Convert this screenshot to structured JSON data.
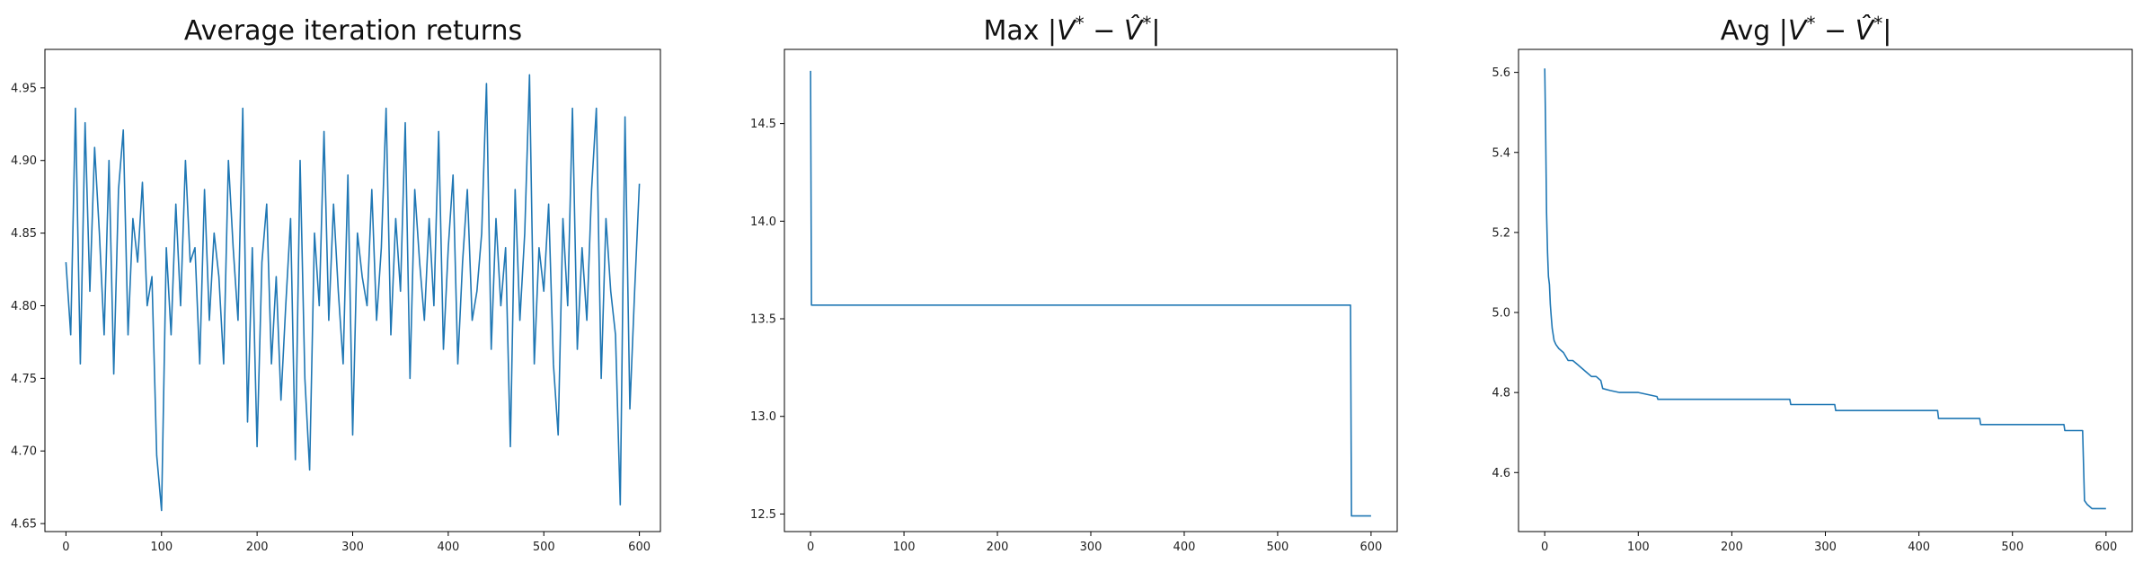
{
  "chart_data": [
    {
      "type": "line",
      "title": "Average iteration returns",
      "xlabel": "",
      "ylabel": "",
      "xlim": [
        -22,
        622
      ],
      "ylim": [
        4.6445,
        4.9765
      ],
      "xticks": [
        0,
        100,
        200,
        300,
        400,
        500,
        600
      ],
      "yticks": [
        4.65,
        4.7,
        4.75,
        4.8,
        4.85,
        4.9,
        4.95
      ],
      "ytick_labels": [
        "4.65",
        "4.70",
        "4.75",
        "4.80",
        "4.85",
        "4.90",
        "4.95"
      ],
      "color": "#1f77b4",
      "series": [
        {
          "x": [
            0,
            5,
            10,
            15,
            20,
            25,
            30,
            35,
            40,
            45,
            50,
            55,
            60,
            65,
            70,
            75,
            80,
            85,
            90,
            95,
            100,
            105,
            110,
            115,
            120,
            125,
            130,
            135,
            140,
            145,
            150,
            155,
            160,
            165,
            170,
            175,
            180,
            185,
            190,
            195,
            200,
            205,
            210,
            215,
            220,
            225,
            230,
            235,
            240,
            245,
            250,
            255,
            260,
            265,
            270,
            275,
            280,
            285,
            290,
            295,
            300,
            305,
            310,
            315,
            320,
            325,
            330,
            335,
            340,
            345,
            350,
            355,
            360,
            365,
            370,
            375,
            380,
            385,
            390,
            395,
            400,
            405,
            410,
            415,
            420,
            425,
            430,
            435,
            440,
            445,
            450,
            455,
            460,
            465,
            470,
            475,
            480,
            485,
            490,
            495,
            500,
            505,
            510,
            515,
            520,
            525,
            530,
            535,
            540,
            545,
            550,
            555,
            560,
            565,
            570,
            575,
            580,
            585,
            590,
            595,
            600
          ],
          "y": [
            4.83,
            4.78,
            4.936,
            4.76,
            4.926,
            4.81,
            4.909,
            4.85,
            4.78,
            4.9,
            4.753,
            4.88,
            4.921,
            4.78,
            4.86,
            4.83,
            4.885,
            4.8,
            4.82,
            4.697,
            4.659,
            4.84,
            4.78,
            4.87,
            4.8,
            4.9,
            4.83,
            4.84,
            4.76,
            4.88,
            4.79,
            4.85,
            4.82,
            4.76,
            4.9,
            4.84,
            4.79,
            4.936,
            4.72,
            4.84,
            4.703,
            4.83,
            4.87,
            4.76,
            4.82,
            4.735,
            4.8,
            4.86,
            4.694,
            4.9,
            4.75,
            4.687,
            4.85,
            4.8,
            4.92,
            4.79,
            4.87,
            4.81,
            4.76,
            4.89,
            4.711,
            4.85,
            4.82,
            4.8,
            4.88,
            4.79,
            4.84,
            4.936,
            4.78,
            4.86,
            4.81,
            4.926,
            4.75,
            4.88,
            4.83,
            4.79,
            4.86,
            4.8,
            4.92,
            4.77,
            4.84,
            4.89,
            4.76,
            4.83,
            4.88,
            4.79,
            4.81,
            4.85,
            4.953,
            4.77,
            4.86,
            4.8,
            4.84,
            4.703,
            4.88,
            4.79,
            4.85,
            4.959,
            4.76,
            4.84,
            4.81,
            4.87,
            4.76,
            4.711,
            4.86,
            4.8,
            4.936,
            4.77,
            4.84,
            4.79,
            4.88,
            4.936,
            4.75,
            4.86,
            4.81,
            4.78,
            4.663,
            4.93,
            4.729,
            4.81,
            4.884
          ]
        }
      ]
    },
    {
      "type": "line",
      "title_prefix": "Max",
      "title": "Max |V* − V̂*|",
      "xlabel": "",
      "ylabel": "",
      "xlim": [
        -28,
        628
      ],
      "ylim": [
        12.41,
        14.88
      ],
      "xticks": [
        0,
        100,
        200,
        300,
        400,
        500,
        600
      ],
      "yticks": [
        12.5,
        13.0,
        13.5,
        14.0,
        14.5
      ],
      "ytick_labels": [
        "12.5",
        "13.0",
        "13.5",
        "14.0",
        "14.5"
      ],
      "color": "#1f77b4",
      "series": [
        {
          "x": [
            0,
            1,
            578,
            579,
            600
          ],
          "y": [
            14.77,
            13.57,
            13.57,
            12.49,
            12.49
          ]
        }
      ]
    },
    {
      "type": "line",
      "title_prefix": "Avg",
      "title": "Avg |V* − V̂*|",
      "xlabel": "",
      "ylabel": "",
      "xlim": [
        -28,
        628
      ],
      "ylim": [
        4.4525,
        5.6575
      ],
      "xticks": [
        0,
        100,
        200,
        300,
        400,
        500,
        600
      ],
      "yticks": [
        4.6,
        4.8,
        5.0,
        5.2,
        5.4,
        5.6
      ],
      "ytick_labels": [
        "4.6",
        "4.8",
        "5.0",
        "5.2",
        "5.4",
        "5.6"
      ],
      "color": "#1f77b4",
      "series": [
        {
          "x": [
            0,
            1,
            2,
            3,
            4,
            5,
            6,
            7,
            8,
            10,
            12,
            15,
            20,
            25,
            30,
            35,
            40,
            45,
            50,
            55,
            60,
            62,
            70,
            80,
            100,
            120,
            121,
            262,
            263,
            310,
            311,
            420,
            421,
            465,
            466,
            555,
            556,
            575,
            577,
            580,
            585,
            600
          ],
          "y": [
            5.61,
            5.45,
            5.25,
            5.15,
            5.09,
            5.07,
            5.02,
            4.99,
            4.96,
            4.93,
            4.92,
            4.91,
            4.9,
            4.88,
            4.88,
            4.87,
            4.86,
            4.85,
            4.84,
            4.84,
            4.83,
            4.81,
            4.805,
            4.8,
            4.8,
            4.79,
            4.783,
            4.783,
            4.77,
            4.77,
            4.755,
            4.755,
            4.735,
            4.735,
            4.72,
            4.72,
            4.705,
            4.705,
            4.53,
            4.52,
            4.51,
            4.51
          ]
        }
      ]
    }
  ]
}
